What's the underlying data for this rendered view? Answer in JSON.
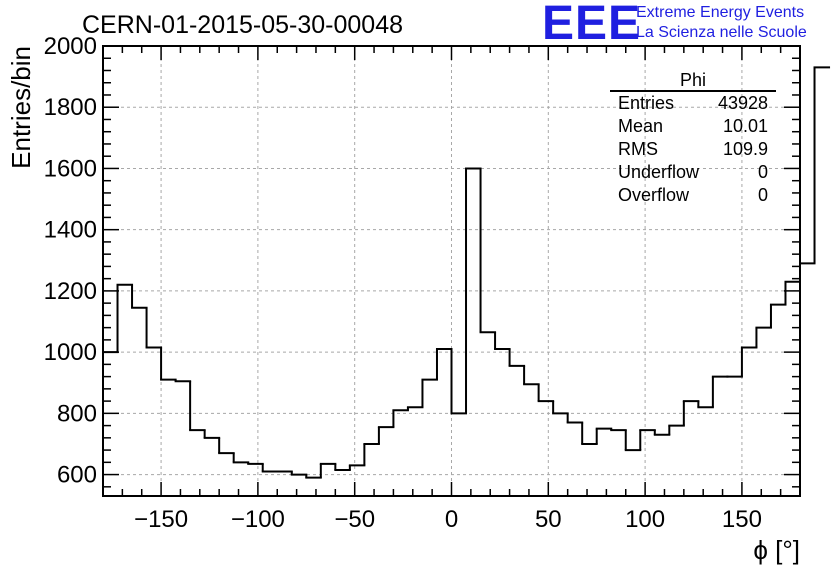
{
  "title": "CERN-01-2015-05-30-00048",
  "logo": {
    "text": "EEE",
    "line1": "Extreme Energy Events",
    "line2": "La Scienza nelle Scuole",
    "color": "#1f1fe0"
  },
  "stats": {
    "name": "Phi",
    "rows": [
      {
        "label": "Entries",
        "value": "43928"
      },
      {
        "label": "Mean",
        "value": "10.01"
      },
      {
        "label": "RMS",
        "value": "109.9"
      },
      {
        "label": "Underflow",
        "value": "0"
      },
      {
        "label": "Overflow",
        "value": "0"
      }
    ]
  },
  "chart_data": {
    "type": "bar",
    "histogram": true,
    "xlabel": "ϕ [°]",
    "ylabel": "Entries/bin",
    "xlim": [
      -180,
      180
    ],
    "ylim": [
      530,
      2000
    ],
    "bin_width": 7.5,
    "bin_start": -180,
    "grid": true,
    "line_color": "#000000",
    "xticks": [
      -150,
      -100,
      -50,
      0,
      50,
      100,
      150
    ],
    "xtick_labels": [
      "−150",
      "−100",
      "−50",
      "0",
      "50",
      "100",
      "150"
    ],
    "yticks": [
      600,
      800,
      1000,
      1200,
      1400,
      1600,
      1800,
      2000
    ],
    "ytick_labels": [
      "600",
      "800",
      "1000",
      "1200",
      "1400",
      "1600",
      "1800",
      "2000"
    ],
    "values": [
      1000,
      1220,
      1145,
      1015,
      910,
      905,
      745,
      720,
      670,
      640,
      635,
      610,
      610,
      600,
      590,
      635,
      615,
      630,
      700,
      755,
      810,
      820,
      910,
      1010,
      800,
      1600,
      1065,
      1010,
      955,
      895,
      840,
      800,
      770,
      700,
      750,
      745,
      680,
      745,
      730,
      760,
      840,
      820,
      920,
      920,
      1015,
      1080,
      1155,
      1230,
      1290,
      1930
    ]
  }
}
